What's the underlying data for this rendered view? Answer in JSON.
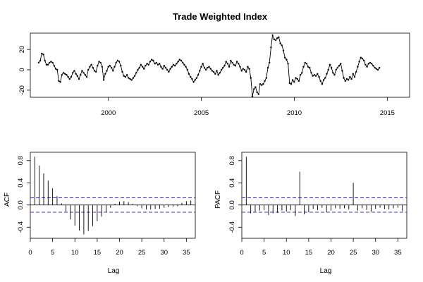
{
  "colors": {
    "line": "#000000",
    "ci": "#3b3bd6",
    "background": "#ffffff"
  },
  "chart_data": [
    {
      "type": "line",
      "title": "Trade Weighted Index",
      "xlabel": "",
      "ylabel": "",
      "xlim": [
        1995.8,
        2016.2
      ],
      "ylim": [
        -27,
        36
      ],
      "x_ticks": [
        2000,
        2005,
        2010,
        2015
      ],
      "y_ticks": [
        -20,
        0,
        20
      ],
      "x_start": 1996.25,
      "x_step": 0.0833,
      "markers": "points",
      "values": [
        7,
        9,
        16,
        15,
        9,
        5,
        5,
        7,
        8,
        7,
        4,
        1,
        0,
        -11,
        -12,
        -5,
        -3,
        -4,
        -5,
        -7,
        -9,
        -7,
        -3,
        -1,
        -4,
        -6,
        -9,
        -5,
        -1,
        -3,
        -5,
        -7,
        0,
        3,
        5,
        2,
        -1,
        -2,
        4,
        8,
        7,
        3,
        -10,
        -4,
        -1,
        3,
        4,
        2,
        -1,
        3,
        7,
        9,
        8,
        4,
        -2,
        -6,
        -7,
        -5,
        -8,
        -9,
        -10,
        -8,
        -6,
        -3,
        0,
        2,
        5,
        3,
        1,
        4,
        6,
        5,
        8,
        10,
        9,
        6,
        7,
        5,
        6,
        3,
        1,
        4,
        2,
        0,
        -2,
        1,
        3,
        5,
        4,
        6,
        8,
        10,
        9,
        7,
        5,
        3,
        0,
        -4,
        -7,
        -9,
        -12,
        -10,
        -8,
        -5,
        -1,
        3,
        6,
        2,
        0,
        2,
        3,
        1,
        -1,
        -2,
        -4,
        -1,
        -5,
        -3,
        0,
        2,
        4,
        8,
        6,
        3,
        9,
        7,
        5,
        4,
        8,
        6,
        3,
        -1,
        1,
        0,
        -2,
        3,
        1,
        -8,
        -26,
        -19,
        -17,
        -22,
        -24,
        -14,
        -15,
        -14,
        -11,
        -8,
        2,
        7,
        22,
        34,
        30,
        29,
        31,
        32,
        26,
        24,
        19,
        12,
        10,
        6,
        -13,
        -14,
        -10,
        -12,
        -8,
        -9,
        -11,
        -5,
        -3,
        3,
        7,
        6,
        3,
        2,
        -3,
        -6,
        -5,
        -6,
        -4,
        -7,
        -11,
        -14,
        -10,
        -8,
        -4,
        0,
        5,
        2,
        -3,
        -5,
        0,
        2,
        4,
        6,
        -1,
        -8,
        -11,
        -9,
        -10,
        -7,
        -9,
        -4,
        -7,
        -2,
        3,
        8,
        12,
        11,
        9,
        5,
        3,
        6,
        7,
        6,
        4,
        2,
        1,
        0,
        2
      ]
    },
    {
      "type": "bar",
      "title": "",
      "xlabel": "Lag",
      "ylabel": "ACF",
      "xlim": [
        0,
        37
      ],
      "ylim": [
        -0.6,
        0.95
      ],
      "x_ticks": [
        0,
        5,
        10,
        15,
        20,
        25,
        30,
        35
      ],
      "y_ticks": [
        -0.4,
        0.0,
        0.4,
        0.8
      ],
      "y_tick_labels": [
        "-0.4",
        "0.0",
        "0.4",
        "0.8"
      ],
      "ci": 0.13,
      "lags": [
        1,
        2,
        3,
        4,
        5,
        6,
        7,
        8,
        9,
        10,
        11,
        12,
        13,
        14,
        15,
        16,
        17,
        18,
        19,
        20,
        21,
        22,
        23,
        24,
        25,
        26,
        27,
        28,
        29,
        30,
        31,
        32,
        33,
        34,
        35,
        36
      ],
      "values": [
        0.87,
        0.71,
        0.57,
        0.44,
        0.3,
        0.16,
        0.03,
        -0.12,
        -0.26,
        -0.37,
        -0.46,
        -0.53,
        -0.47,
        -0.38,
        -0.29,
        -0.21,
        -0.13,
        -0.05,
        0.02,
        0.06,
        0.07,
        0.05,
        0.02,
        -0.02,
        -0.06,
        -0.08,
        -0.08,
        -0.07,
        -0.07,
        -0.05,
        -0.04,
        -0.03,
        -0.02,
        0.04,
        0.07,
        0.08
      ]
    },
    {
      "type": "bar",
      "title": "",
      "xlabel": "Lag",
      "ylabel": "PACF",
      "xlim": [
        0,
        37
      ],
      "ylim": [
        -0.6,
        0.95
      ],
      "x_ticks": [
        0,
        5,
        10,
        15,
        20,
        25,
        30,
        35
      ],
      "y_ticks": [
        -0.4,
        0.0,
        0.4,
        0.8
      ],
      "y_tick_labels": [
        "-0.4",
        "0.0",
        "0.4",
        "0.8"
      ],
      "ci": 0.13,
      "lags": [
        1,
        2,
        3,
        4,
        5,
        6,
        7,
        8,
        9,
        10,
        11,
        12,
        13,
        14,
        15,
        16,
        17,
        18,
        19,
        20,
        21,
        22,
        23,
        24,
        25,
        26,
        27,
        28,
        29,
        30,
        31,
        32,
        33,
        34,
        35,
        36
      ],
      "values": [
        0.87,
        -0.15,
        -0.12,
        -0.1,
        -0.09,
        -0.18,
        -0.15,
        -0.14,
        -0.1,
        -0.12,
        -0.09,
        -0.2,
        0.6,
        -0.17,
        -0.13,
        -0.07,
        -0.09,
        -0.05,
        -0.13,
        -0.1,
        -0.06,
        -0.07,
        -0.06,
        -0.08,
        0.4,
        -0.1,
        -0.06,
        -0.09,
        -0.12,
        -0.07,
        -0.05,
        -0.07,
        -0.08,
        -0.06,
        -0.05,
        -0.11
      ]
    }
  ]
}
